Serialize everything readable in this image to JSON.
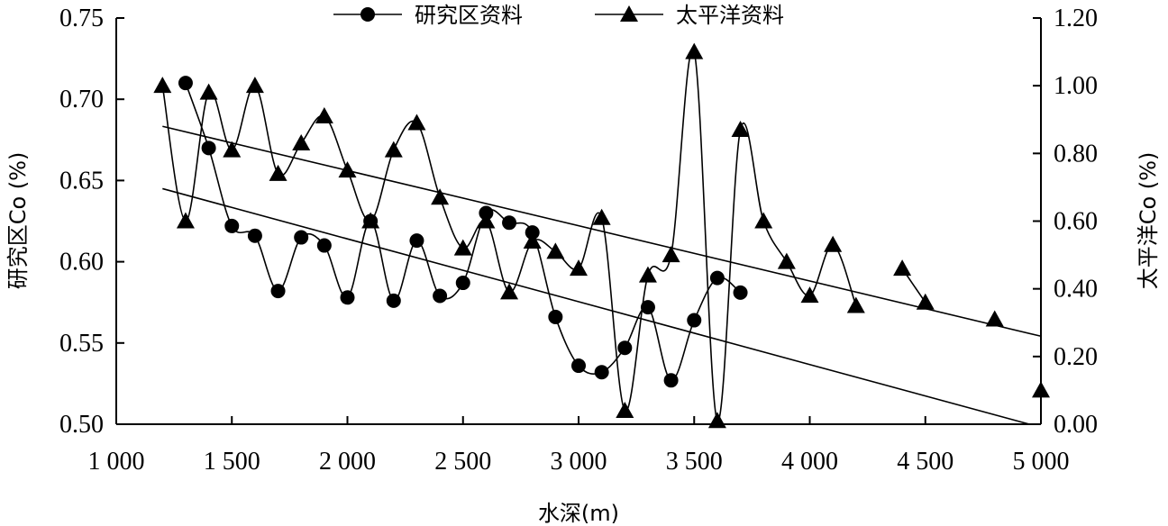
{
  "chart_data": {
    "type": "line",
    "xlabel": "水深(m)",
    "ylabel_left": "研究区Co (%)",
    "ylabel_right": "太平洋Co (%)",
    "x_range": [
      1000,
      5000
    ],
    "y_left_range": [
      0.5,
      0.75
    ],
    "y_right_range": [
      0.0,
      1.2
    ],
    "x_ticks": [
      1000,
      1500,
      2000,
      2500,
      3000,
      3500,
      4000,
      4500,
      5000
    ],
    "x_tick_labels": [
      "1 000",
      "1 500",
      "2 000",
      "2 500",
      "3 000",
      "3 500",
      "4 000",
      "4 500",
      "5 000"
    ],
    "y_left_ticks": [
      0.5,
      0.55,
      0.6,
      0.65,
      0.7,
      0.75
    ],
    "y_left_tick_labels": [
      "0.50",
      "0.55",
      "0.60",
      "0.65",
      "0.70",
      "0.75"
    ],
    "y_right_ticks": [
      0.0,
      0.2,
      0.4,
      0.6,
      0.8,
      1.0,
      1.2
    ],
    "y_right_tick_labels": [
      "0.00",
      "0.20",
      "0.40",
      "0.60",
      "0.80",
      "1.00",
      "1.20"
    ],
    "grid": false,
    "legend_position": "top",
    "series": [
      {
        "name": "研究区资料",
        "axis": "left",
        "marker": "circle",
        "x": [
          1300,
          1400,
          1500,
          1600,
          1700,
          1800,
          1900,
          2000,
          2100,
          2200,
          2300,
          2400,
          2500,
          2600,
          2700,
          2800,
          2900,
          3000,
          3100,
          3200,
          3300,
          3400,
          3500,
          3600,
          3700
        ],
        "y": [
          0.71,
          0.67,
          0.622,
          0.616,
          0.582,
          0.615,
          0.61,
          0.578,
          0.625,
          0.576,
          0.613,
          0.579,
          0.587,
          0.63,
          0.624,
          0.618,
          0.566,
          0.536,
          0.532,
          0.547,
          0.572,
          0.527,
          0.564,
          0.59,
          0.581
        ]
      },
      {
        "name": "太平洋资料",
        "axis": "right",
        "marker": "triangle",
        "segments": [
          {
            "x": [
              1200,
              1300,
              1400,
              1500,
              1600,
              1700,
              1800,
              1900,
              2000,
              2100,
              2200,
              2300,
              2400,
              2500,
              2600,
              2700,
              2800,
              2900,
              3000,
              3100,
              3200,
              3300,
              3400,
              3500,
              3600,
              3700,
              3800,
              3900,
              4000,
              4100,
              4200
            ],
            "y": [
              1.0,
              0.6,
              0.98,
              0.81,
              1.0,
              0.74,
              0.83,
              0.91,
              0.75,
              0.6,
              0.81,
              0.89,
              0.67,
              0.52,
              0.6,
              0.39,
              0.54,
              0.51,
              0.46,
              0.61,
              0.04,
              0.44,
              0.5,
              1.1,
              0.01,
              0.87,
              0.6,
              0.48,
              0.38,
              0.53,
              0.35
            ]
          },
          {
            "x": [
              4400,
              4500
            ],
            "y": [
              0.46,
              0.36
            ]
          },
          {
            "x": [
              4800
            ],
            "y": [
              0.31
            ]
          },
          {
            "x": [
              5000
            ],
            "y": [
              0.1
            ]
          }
        ]
      }
    ],
    "trendlines": [
      {
        "name": "",
        "axis": "right",
        "x": [
          1200,
          5000
        ],
        "y": [
          0.88,
          0.26
        ]
      },
      {
        "name": "",
        "axis": "left",
        "x": [
          1200,
          4950
        ],
        "y": [
          0.645,
          0.5
        ]
      }
    ]
  }
}
